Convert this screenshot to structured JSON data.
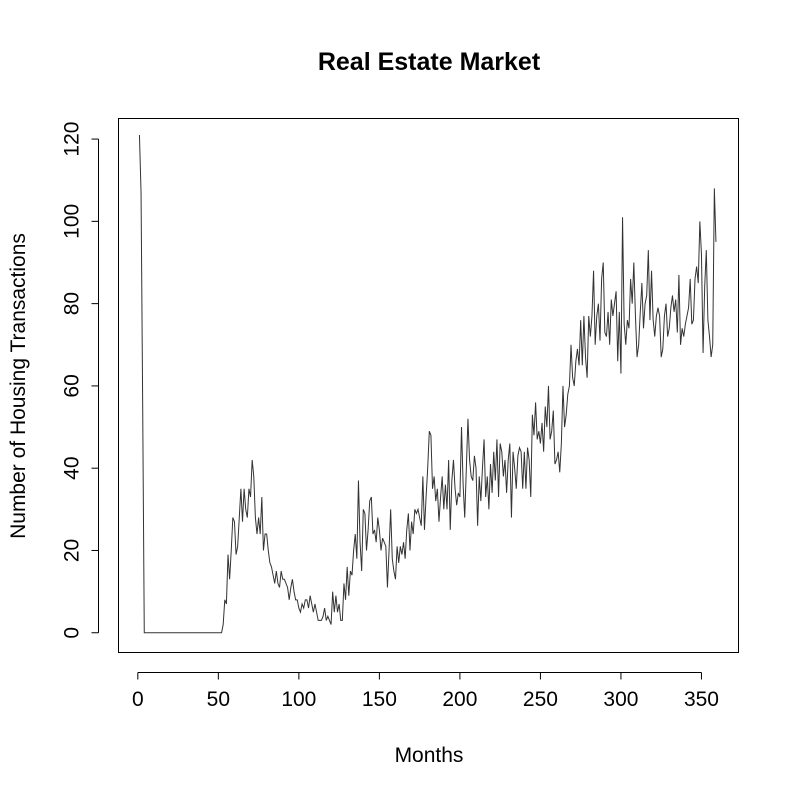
{
  "chart_data": {
    "type": "line",
    "title": "Real Estate Market",
    "xlabel": "Months",
    "ylabel": "Number of Housing Transactions",
    "xlim": [
      -12,
      373
    ],
    "ylim": [
      -4.8,
      125
    ],
    "xticks": [
      0,
      50,
      100,
      150,
      200,
      250,
      300,
      350
    ],
    "yticks": [
      0,
      20,
      40,
      60,
      80,
      100,
      120
    ],
    "grid": false,
    "series": [
      {
        "values": [
          121,
          107,
          56,
          0,
          0,
          0,
          0,
          0,
          0,
          0,
          0,
          0,
          0,
          0,
          0,
          0,
          0,
          0,
          0,
          0,
          0,
          0,
          0,
          0,
          0,
          0,
          0,
          0,
          0,
          0,
          0,
          0,
          0,
          0,
          0,
          0,
          0,
          0,
          0,
          0,
          0,
          0,
          0,
          0,
          0,
          0,
          0,
          0,
          0,
          0,
          0,
          0,
          2,
          8,
          7,
          19,
          13,
          20,
          28,
          27,
          19,
          21,
          28,
          35,
          27,
          35,
          30,
          28,
          35,
          33,
          42,
          38,
          28,
          24,
          28,
          24,
          33,
          20,
          24,
          24,
          20,
          17,
          16,
          14,
          12,
          15,
          12,
          11,
          15,
          13,
          13,
          12,
          11,
          8,
          11,
          13,
          10,
          8,
          8,
          6,
          5,
          7,
          6,
          8,
          8,
          6,
          9,
          7,
          5,
          7,
          5,
          3,
          3,
          3,
          4,
          6,
          3,
          4,
          3,
          2,
          10,
          5,
          9,
          5,
          7,
          3,
          3,
          12,
          8,
          16,
          9,
          15,
          14,
          20,
          24,
          18,
          37,
          22,
          15,
          30,
          29,
          20,
          25,
          32,
          33,
          24,
          25,
          22,
          28,
          25,
          20,
          23,
          22,
          21,
          11,
          20,
          30,
          18,
          15,
          13,
          21,
          17,
          21,
          19,
          22,
          18,
          25,
          29,
          20,
          27,
          24,
          30,
          29,
          30,
          28,
          26,
          38,
          25,
          33,
          40,
          49,
          48,
          35,
          38,
          32,
          35,
          27,
          33,
          38,
          30,
          36,
          30,
          42,
          25,
          37,
          42,
          35,
          31,
          34,
          33,
          50,
          36,
          28,
          40,
          52,
          42,
          38,
          37,
          43,
          40,
          26,
          38,
          32,
          40,
          47,
          33,
          38,
          30,
          41,
          34,
          44,
          37,
          47,
          33,
          46,
          44,
          38,
          42,
          34,
          42,
          46,
          28,
          44,
          40,
          35,
          43,
          45,
          44,
          35,
          44,
          35,
          45,
          42,
          33,
          53,
          48,
          56,
          47,
          49,
          46,
          51,
          44,
          55,
          50,
          60,
          47,
          49,
          54,
          41,
          42,
          44,
          39,
          46,
          60,
          50,
          53,
          58,
          60,
          70,
          62,
          60,
          66,
          69,
          65,
          76,
          65,
          77,
          67,
          62,
          77,
          72,
          77,
          88,
          70,
          77,
          80,
          71,
          86,
          90,
          73,
          72,
          78,
          70,
          81,
          77,
          80,
          83,
          66,
          78,
          63,
          101,
          75,
          70,
          76,
          74,
          86,
          80,
          90,
          77,
          67,
          70,
          78,
          85,
          74,
          80,
          82,
          93,
          76,
          88,
          76,
          72,
          77,
          79,
          77,
          67,
          69,
          77,
          80,
          72,
          74,
          79,
          82,
          78,
          81,
          73,
          87,
          70,
          74,
          72,
          75,
          77,
          79,
          86,
          75,
          76,
          86,
          89,
          85,
          100,
          92,
          68,
          84,
          93,
          76,
          72,
          67,
          70,
          108,
          95
        ]
      }
    ]
  }
}
